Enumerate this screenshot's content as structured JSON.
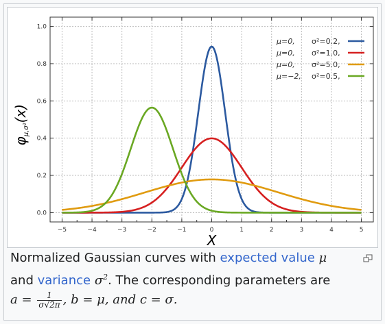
{
  "chart_data": {
    "type": "line",
    "title": "",
    "xlabel": "X",
    "ylabel": "φμ,σ²(x)",
    "ylabel_main": "φ",
    "ylabel_sub": "μ,σ²",
    "ylabel_paren": "(x)",
    "xlim": [
      -5.4,
      5.4
    ],
    "ylim": [
      -0.05,
      1.05
    ],
    "x_ticks": [
      -5,
      -4,
      -3,
      -2,
      -1,
      0,
      1,
      2,
      3,
      4,
      5
    ],
    "x_tick_labels": [
      "−5",
      "−4",
      "−3",
      "−2",
      "−1",
      "0",
      "1",
      "2",
      "3",
      "4",
      "5"
    ],
    "y_ticks": [
      0.0,
      0.2,
      0.4,
      0.6,
      0.8,
      1.0
    ],
    "y_tick_labels": [
      "0.0",
      "0.2",
      "0.4",
      "0.6",
      "0.8",
      "1.0"
    ],
    "grid": true,
    "legend_position": "top-right",
    "series": [
      {
        "mu_label": "μ=0,",
        "var_label": "σ²=0.2,",
        "mu": 0,
        "variance": 0.2,
        "color": "#2c5aa0"
      },
      {
        "mu_label": "μ=0,",
        "var_label": "σ²=1.0,",
        "mu": 0,
        "variance": 1.0,
        "color": "#d62020"
      },
      {
        "mu_label": "μ=0,",
        "var_label": "σ²=5.0,",
        "mu": 0,
        "variance": 5.0,
        "color": "#e09b10"
      },
      {
        "mu_label": "μ=−2,",
        "var_label": "σ²=0.5,",
        "mu": -2,
        "variance": 0.5,
        "color": "#6aa823"
      }
    ]
  },
  "caption": {
    "text1": "Normalized Gaussian curves with ",
    "link_expected": "expected value",
    "mu": " μ",
    "text2": "and ",
    "link_variance": "variance",
    "sigma2": " σ",
    "sup2": "2",
    "text3": ". The corresponding parameters are",
    "a_eq": "a = ",
    "frac_num": "1",
    "frac_den": "σ√2π",
    "b_part": ", b = μ, and c = σ."
  },
  "icons": {
    "magnify": "magnify-clip-icon"
  }
}
